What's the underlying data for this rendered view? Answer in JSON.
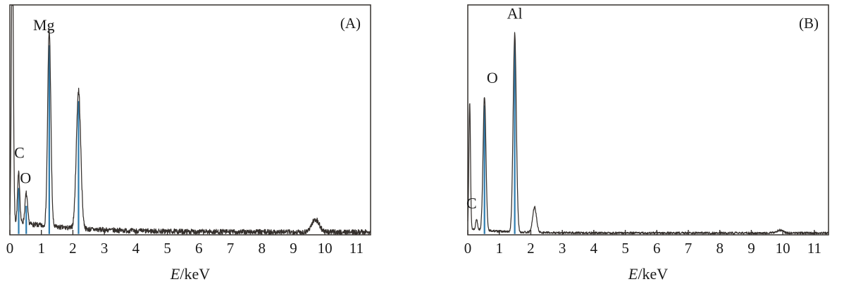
{
  "colors": {
    "curve": "#35302d",
    "accent": "#2e7cae",
    "text": "#1a1a1a",
    "background": "#ffffff"
  },
  "chart_data": [
    {
      "type": "line",
      "panel_label": "(A)",
      "xlabel_variable": "E",
      "xlabel_unit": "/keV",
      "x_ticks": [
        0,
        1,
        2,
        3,
        4,
        5,
        6,
        7,
        8,
        9,
        10,
        11
      ],
      "x_range": [
        0,
        11.45
      ],
      "y_range": [
        0,
        1
      ],
      "background": {
        "base": 0.012,
        "amp": 0.05,
        "decay": 1.8,
        "noise": 0.011
      },
      "peaks": [
        {
          "element": "zero-strobe",
          "center": 0.08,
          "height": 1.3,
          "sigma": 0.03,
          "accent": false
        },
        {
          "element": "C",
          "center": 0.28,
          "height": 0.21,
          "sigma": 0.035,
          "accent": true
        },
        {
          "element": "O",
          "center": 0.52,
          "height": 0.13,
          "sigma": 0.04,
          "accent": true
        },
        {
          "element": "Mg",
          "center": 1.25,
          "height": 0.85,
          "sigma": 0.05,
          "accent": true
        },
        {
          "element": "unlabeled",
          "center": 2.18,
          "height": 0.6,
          "sigma": 0.07,
          "accent": true
        },
        {
          "element": "unlabeled",
          "center": 9.7,
          "height": 0.055,
          "sigma": 0.12,
          "accent": false
        }
      ],
      "labels": [
        {
          "text": "Mg",
          "x": 1.08,
          "y": 0.89
        },
        {
          "text": "C",
          "x": 0.3,
          "y": 0.335
        },
        {
          "text": "O",
          "x": 0.5,
          "y": 0.225
        }
      ],
      "seed": 7
    },
    {
      "type": "line",
      "panel_label": "(B)",
      "xlabel_variable": "E",
      "xlabel_unit": "/keV",
      "x_ticks": [
        0,
        1,
        2,
        3,
        4,
        5,
        6,
        7,
        8,
        9,
        10,
        11
      ],
      "x_range": [
        0,
        11.45
      ],
      "y_range": [
        0,
        1
      ],
      "background": {
        "base": 0.008,
        "amp": 0.02,
        "decay": 1.0,
        "noise": 0.0045
      },
      "peaks": [
        {
          "element": "zero-strobe",
          "center": 0.06,
          "height": 0.55,
          "sigma": 0.025,
          "accent": false
        },
        {
          "element": "C",
          "center": 0.28,
          "height": 0.045,
          "sigma": 0.03,
          "accent": false
        },
        {
          "element": "O",
          "center": 0.53,
          "height": 0.58,
          "sigma": 0.045,
          "accent": true
        },
        {
          "element": "Al",
          "center": 1.49,
          "height": 0.86,
          "sigma": 0.05,
          "accent": true
        },
        {
          "element": "unlabeled",
          "center": 2.12,
          "height": 0.11,
          "sigma": 0.06,
          "accent": false
        },
        {
          "element": "unlabeled",
          "center": 9.9,
          "height": 0.012,
          "sigma": 0.1,
          "accent": false
        }
      ],
      "labels": [
        {
          "text": "Al",
          "x": 1.49,
          "y": 0.94
        },
        {
          "text": "O",
          "x": 0.78,
          "y": 0.66
        },
        {
          "text": "C",
          "x": 0.12,
          "y": 0.115
        }
      ],
      "seed": 13
    }
  ]
}
